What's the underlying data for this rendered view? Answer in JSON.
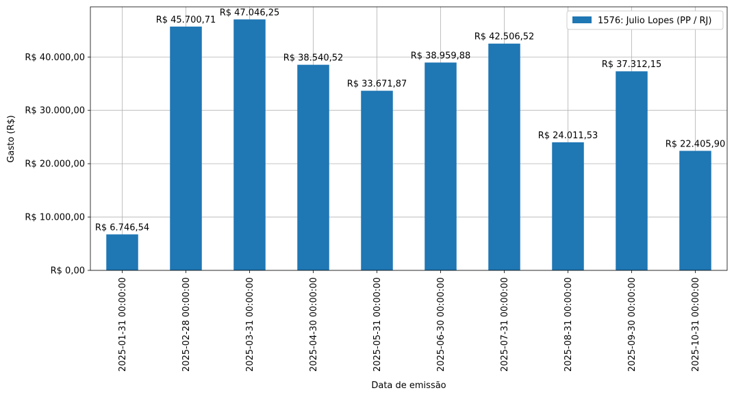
{
  "chart_data": {
    "type": "bar",
    "xlabel": "Data de emissão",
    "ylabel": "Gasto (R$)",
    "categories": [
      "2025-01-31 00:00:00",
      "2025-02-28 00:00:00",
      "2025-03-31 00:00:00",
      "2025-04-30 00:00:00",
      "2025-05-31 00:00:00",
      "2025-06-30 00:00:00",
      "2025-07-31 00:00:00",
      "2025-08-31 00:00:00",
      "2025-09-30 00:00:00",
      "2025-10-31 00:00:00"
    ],
    "series": [
      {
        "name": "1576: Julio Lopes (PP / RJ)",
        "color": "#1f77b4",
        "values": [
          6746.54,
          45700.71,
          47046.25,
          38540.52,
          33671.87,
          38959.88,
          42506.52,
          24011.53,
          37312.15,
          22405.9
        ],
        "labels": [
          "R$ 6.746,54",
          "R$ 45.700,71",
          "R$ 47.046,25",
          "R$ 38.540,52",
          "R$ 33.671,87",
          "R$ 38.959,88",
          "R$ 42.506,52",
          "R$ 24.011,53",
          "R$ 37.312,15",
          "R$ 22.405,90"
        ]
      }
    ],
    "yticks": [
      0,
      10000,
      20000,
      30000,
      40000
    ],
    "ytick_labels": [
      "R$ 0,00",
      "R$ 10.000,00",
      "R$ 20.000,00",
      "R$ 30.000,00",
      "R$ 40.000,00"
    ],
    "ylim": [
      0,
      49400
    ],
    "grid": true,
    "legend_position": "top-right"
  }
}
